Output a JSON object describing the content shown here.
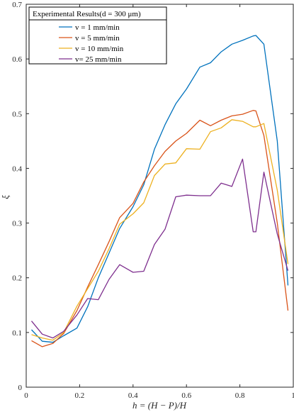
{
  "chart_data": {
    "type": "line",
    "title": "",
    "xlabel": "h = (H − P)/H",
    "ylabel": "ξ",
    "xlim": [
      0,
      1
    ],
    "ylim": [
      0,
      0.7
    ],
    "xticks": [
      0,
      0.2,
      0.4,
      0.6,
      0.8,
      1
    ],
    "xtick_labels": [
      "0",
      "0.2",
      "0.4",
      "0.6",
      "0.8",
      "1"
    ],
    "yticks": [
      0,
      0.1,
      0.2,
      0.3,
      0.4,
      0.5,
      0.6,
      0.7
    ],
    "ytick_labels": [
      "0",
      "0.1",
      "0.2",
      "0.3",
      "0.4",
      "0.5",
      "0.6",
      "0.7"
    ],
    "grid": false,
    "legend": {
      "placement": "top-left",
      "title": "Experimental Results(d = 300 μm)"
    },
    "x": [
      0.02,
      0.06,
      0.1,
      0.14,
      0.19,
      0.23,
      0.27,
      0.31,
      0.35,
      0.4,
      0.44,
      0.48,
      0.52,
      0.56,
      0.6,
      0.65,
      0.69,
      0.73,
      0.77,
      0.81,
      0.85,
      0.86,
      0.89,
      0.94,
      0.98
    ],
    "series": [
      {
        "name": "v = 1 mm/min",
        "color": "#0072BD",
        "values": [
          0.105,
          0.084,
          0.082,
          0.094,
          0.108,
          0.147,
          0.2,
          0.245,
          0.29,
          0.33,
          0.37,
          0.435,
          0.48,
          0.518,
          0.545,
          0.585,
          0.593,
          0.613,
          0.627,
          0.634,
          0.642,
          0.643,
          0.627,
          0.45,
          0.186
        ]
      },
      {
        "name": "v = 5 mm/min",
        "color": "#D95319",
        "values": [
          0.085,
          0.074,
          0.08,
          0.098,
          0.14,
          0.183,
          0.224,
          0.266,
          0.31,
          0.336,
          0.375,
          0.405,
          0.431,
          0.45,
          0.464,
          0.488,
          0.478,
          0.488,
          0.496,
          0.499,
          0.506,
          0.505,
          0.46,
          0.3,
          0.14
        ]
      },
      {
        "name": "v = 10 mm/min",
        "color": "#EDB120",
        "values": [
          0.096,
          0.09,
          0.086,
          0.1,
          0.148,
          0.18,
          0.212,
          0.253,
          0.298,
          0.317,
          0.337,
          0.387,
          0.408,
          0.41,
          0.436,
          0.435,
          0.467,
          0.474,
          0.489,
          0.486,
          0.476,
          0.476,
          0.482,
          0.36,
          0.225
        ]
      },
      {
        "name": "v= 25 mm/min",
        "color": "#7E2F8E",
        "values": [
          0.121,
          0.097,
          0.09,
          0.102,
          0.132,
          0.162,
          0.16,
          0.197,
          0.224,
          0.21,
          0.212,
          0.261,
          0.289,
          0.348,
          0.351,
          0.35,
          0.35,
          0.373,
          0.367,
          0.417,
          0.284,
          0.284,
          0.393,
          0.28,
          0.213
        ]
      }
    ]
  }
}
